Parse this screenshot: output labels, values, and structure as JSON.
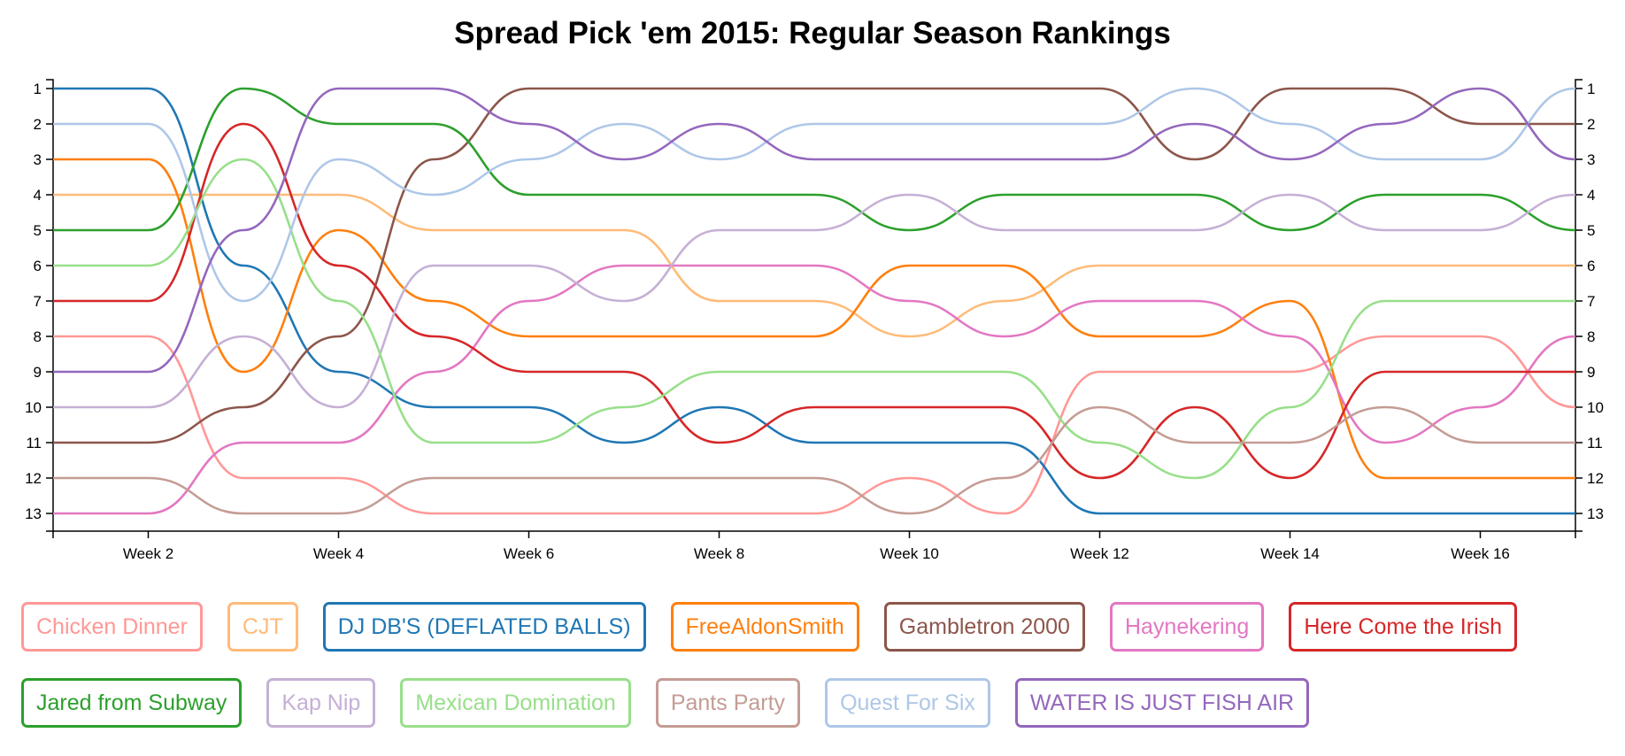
{
  "chart_data": {
    "type": "line",
    "title": "Spread Pick 'em 2015: Regular Season Rankings",
    "x": [
      1,
      2,
      3,
      4,
      5,
      6,
      7,
      8,
      9,
      10,
      11,
      12,
      13,
      14,
      15,
      16,
      17
    ],
    "x_tick_labels": [
      "Week 2",
      "Week 4",
      "Week 6",
      "Week 8",
      "Week 10",
      "Week 12",
      "Week 14",
      "Week 16"
    ],
    "y_tick_labels": [
      "1",
      "2",
      "3",
      "4",
      "5",
      "6",
      "7",
      "8",
      "9",
      "10",
      "11",
      "12",
      "13"
    ],
    "ylim": [
      1,
      13
    ],
    "y_inverted": true,
    "legend_position": "bottom",
    "series": [
      {
        "name": "Chicken Dinner",
        "color": "#ff9896",
        "values": [
          8,
          8,
          12,
          12,
          13,
          13,
          13,
          13,
          13,
          12,
          13,
          9,
          9,
          9,
          8,
          8,
          10
        ]
      },
      {
        "name": "CJT",
        "color": "#ffbb78",
        "values": [
          4,
          4,
          4,
          4,
          5,
          5,
          5,
          7,
          7,
          8,
          7,
          6,
          6,
          6,
          6,
          6,
          6
        ]
      },
      {
        "name": "DJ DB'S (DEFLATED BALLS)",
        "color": "#1f77b4",
        "values": [
          1,
          1,
          6,
          9,
          10,
          10,
          11,
          10,
          11,
          11,
          11,
          13,
          13,
          13,
          13,
          13,
          13
        ]
      },
      {
        "name": "FreeAldonSmith",
        "color": "#ff7f0e",
        "values": [
          3,
          3,
          9,
          5,
          7,
          8,
          8,
          8,
          8,
          6,
          6,
          8,
          8,
          7,
          12,
          12,
          12
        ]
      },
      {
        "name": "Gambletron 2000",
        "color": "#8c564b",
        "values": [
          11,
          11,
          10,
          8,
          3,
          1,
          1,
          1,
          1,
          1,
          1,
          1,
          3,
          1,
          1,
          2,
          2
        ]
      },
      {
        "name": "Haynekering",
        "color": "#e377c2",
        "values": [
          13,
          13,
          11,
          11,
          9,
          7,
          6,
          6,
          6,
          7,
          8,
          7,
          7,
          8,
          11,
          10,
          8
        ]
      },
      {
        "name": "Here Come the Irish",
        "color": "#d62728",
        "values": [
          7,
          7,
          2,
          6,
          8,
          9,
          9,
          11,
          10,
          10,
          10,
          12,
          10,
          12,
          9,
          9,
          9
        ]
      },
      {
        "name": "Jared from Subway",
        "color": "#2ca02c",
        "values": [
          5,
          5,
          1,
          2,
          2,
          4,
          4,
          4,
          4,
          5,
          4,
          4,
          4,
          5,
          4,
          4,
          5
        ]
      },
      {
        "name": "Kap Nip",
        "color": "#c5b0d5",
        "values": [
          10,
          10,
          8,
          10,
          6,
          6,
          7,
          5,
          5,
          4,
          5,
          5,
          5,
          4,
          5,
          5,
          4
        ]
      },
      {
        "name": "Mexican Domination",
        "color": "#98df8a",
        "values": [
          6,
          6,
          3,
          7,
          11,
          11,
          10,
          9,
          9,
          9,
          9,
          11,
          12,
          10,
          7,
          7,
          7
        ]
      },
      {
        "name": "Pants Party",
        "color": "#c49c94",
        "values": [
          12,
          12,
          13,
          13,
          12,
          12,
          12,
          12,
          12,
          13,
          12,
          10,
          11,
          11,
          10,
          11,
          11
        ]
      },
      {
        "name": "Quest For Six",
        "color": "#aec7e8",
        "values": [
          2,
          2,
          7,
          3,
          4,
          3,
          2,
          3,
          2,
          2,
          2,
          2,
          1,
          2,
          3,
          3,
          1
        ]
      },
      {
        "name": "WATER IS JUST FISH AIR",
        "color": "#9467bd",
        "values": [
          9,
          9,
          5,
          1,
          1,
          2,
          3,
          2,
          3,
          3,
          3,
          3,
          2,
          3,
          2,
          1,
          3
        ]
      }
    ]
  }
}
